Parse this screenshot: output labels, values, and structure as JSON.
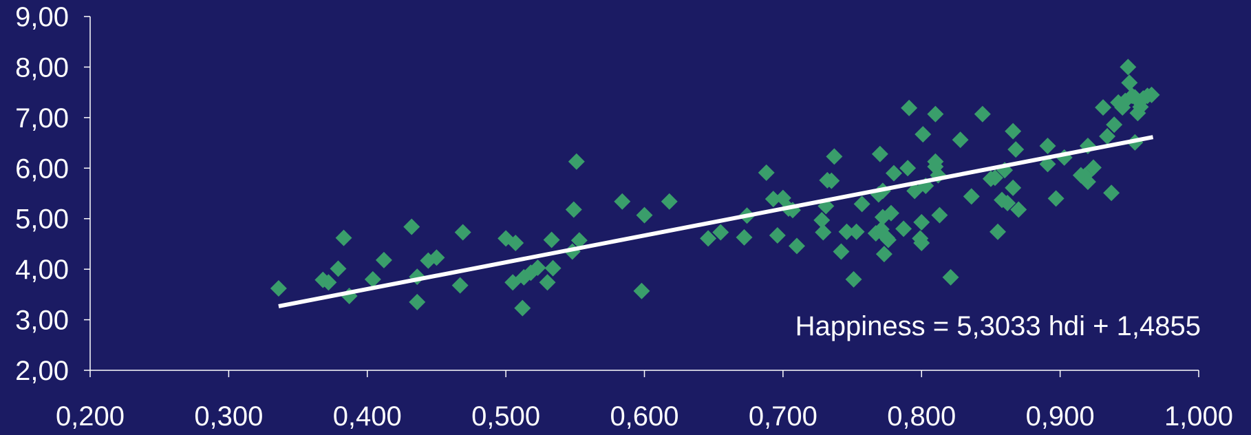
{
  "chart_data": {
    "type": "scatter",
    "title": "",
    "xlabel": "",
    "ylabel": "",
    "xlim": [
      0.2,
      1.0
    ],
    "ylim": [
      2.0,
      9.0
    ],
    "x_ticks": [
      "0,200",
      "0,300",
      "0,400",
      "0,500",
      "0,600",
      "0,700",
      "0,800",
      "0,900",
      "1,000"
    ],
    "y_ticks": [
      "2,00",
      "3,00",
      "4,00",
      "5,00",
      "6,00",
      "7,00",
      "8,00",
      "9,00"
    ],
    "grid": false,
    "legend": "none",
    "colors": {
      "background": "#1b1b63",
      "points": "#3a9e6b",
      "trendline": "#ffffff",
      "axis": "#ffffff"
    },
    "marker": "diamond",
    "trendline": {
      "slope": 5.3033,
      "intercept": 1.4855,
      "x_range": [
        0.336,
        0.967
      ]
    },
    "annotations": [
      {
        "text": "Happiness = 5,3033 hdi + 1,4855"
      }
    ],
    "series": [
      {
        "points": [
          [
            0.336,
            3.62
          ],
          [
            0.368,
            3.79
          ],
          [
            0.372,
            3.74
          ],
          [
            0.379,
            4.01
          ],
          [
            0.383,
            4.62
          ],
          [
            0.387,
            3.47
          ],
          [
            0.404,
            3.8
          ],
          [
            0.412,
            4.18
          ],
          [
            0.432,
            4.84
          ],
          [
            0.436,
            3.85
          ],
          [
            0.436,
            3.35
          ],
          [
            0.444,
            4.17
          ],
          [
            0.45,
            4.23
          ],
          [
            0.467,
            3.68
          ],
          [
            0.469,
            4.73
          ],
          [
            0.5,
            4.61
          ],
          [
            0.507,
            4.52
          ],
          [
            0.505,
            3.74
          ],
          [
            0.512,
            3.23
          ],
          [
            0.513,
            3.84
          ],
          [
            0.518,
            3.93
          ],
          [
            0.523,
            4.03
          ],
          [
            0.53,
            3.74
          ],
          [
            0.534,
            4.02
          ],
          [
            0.533,
            4.58
          ],
          [
            0.548,
            4.35
          ],
          [
            0.549,
            5.18
          ],
          [
            0.551,
            6.13
          ],
          [
            0.553,
            4.57
          ],
          [
            0.584,
            5.34
          ],
          [
            0.598,
            3.57
          ],
          [
            0.6,
            5.07
          ],
          [
            0.618,
            5.34
          ],
          [
            0.646,
            4.61
          ],
          [
            0.655,
            4.73
          ],
          [
            0.672,
            4.63
          ],
          [
            0.674,
            5.06
          ],
          [
            0.688,
            5.91
          ],
          [
            0.693,
            5.39
          ],
          [
            0.696,
            4.67
          ],
          [
            0.7,
            5.41
          ],
          [
            0.704,
            5.2
          ],
          [
            0.707,
            5.17
          ],
          [
            0.71,
            4.46
          ],
          [
            0.728,
            4.97
          ],
          [
            0.729,
            4.73
          ],
          [
            0.731,
            5.25
          ],
          [
            0.732,
            5.76
          ],
          [
            0.735,
            5.75
          ],
          [
            0.737,
            6.23
          ],
          [
            0.742,
            4.35
          ],
          [
            0.746,
            4.74
          ],
          [
            0.751,
            3.8
          ],
          [
            0.753,
            4.74
          ],
          [
            0.757,
            5.29
          ],
          [
            0.767,
            4.71
          ],
          [
            0.769,
            5.48
          ],
          [
            0.77,
            6.28
          ],
          [
            0.771,
            4.79
          ],
          [
            0.772,
            5.03
          ],
          [
            0.772,
            5.55
          ],
          [
            0.773,
            4.3
          ],
          [
            0.775,
            4.62
          ],
          [
            0.776,
            4.58
          ],
          [
            0.778,
            5.11
          ],
          [
            0.78,
            5.9
          ],
          [
            0.787,
            4.8
          ],
          [
            0.79,
            6.0
          ],
          [
            0.791,
            7.19
          ],
          [
            0.795,
            5.55
          ],
          [
            0.799,
            4.61
          ],
          [
            0.8,
            4.52
          ],
          [
            0.8,
            4.93
          ],
          [
            0.801,
            6.67
          ],
          [
            0.803,
            5.65
          ],
          [
            0.81,
            6.03
          ],
          [
            0.81,
            6.13
          ],
          [
            0.81,
            7.07
          ],
          [
            0.812,
            5.86
          ],
          [
            0.813,
            5.07
          ],
          [
            0.821,
            3.84
          ],
          [
            0.828,
            6.56
          ],
          [
            0.836,
            5.44
          ],
          [
            0.844,
            7.07
          ],
          [
            0.85,
            5.79
          ],
          [
            0.853,
            5.81
          ],
          [
            0.855,
            4.74
          ],
          [
            0.858,
            5.37
          ],
          [
            0.86,
            5.96
          ],
          [
            0.862,
            5.31
          ],
          [
            0.866,
            6.73
          ],
          [
            0.866,
            5.61
          ],
          [
            0.868,
            6.37
          ],
          [
            0.87,
            5.18
          ],
          [
            0.891,
            6.44
          ],
          [
            0.891,
            6.08
          ],
          [
            0.897,
            5.4
          ],
          [
            0.903,
            6.21
          ],
          [
            0.915,
            5.86
          ],
          [
            0.918,
            5.85
          ],
          [
            0.92,
            6.44
          ],
          [
            0.92,
            5.73
          ],
          [
            0.924,
            6.01
          ],
          [
            0.931,
            7.2
          ],
          [
            0.934,
            6.63
          ],
          [
            0.937,
            5.51
          ],
          [
            0.939,
            6.86
          ],
          [
            0.942,
            7.3
          ],
          [
            0.945,
            7.2
          ],
          [
            0.947,
            7.33
          ],
          [
            0.949,
            8.0
          ],
          [
            0.95,
            7.69
          ],
          [
            0.952,
            7.43
          ],
          [
            0.954,
            7.4
          ],
          [
            0.954,
            6.51
          ],
          [
            0.956,
            7.09
          ],
          [
            0.958,
            7.21
          ],
          [
            0.96,
            7.38
          ],
          [
            0.963,
            7.43
          ],
          [
            0.966,
            7.45
          ]
        ]
      }
    ]
  }
}
